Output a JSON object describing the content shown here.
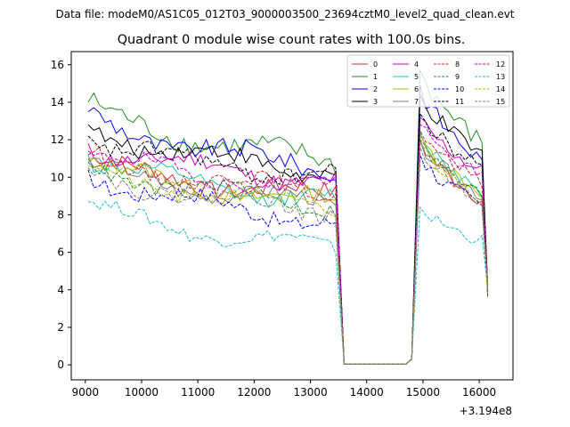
{
  "figure": {
    "suptitle": "Data file: modeM0/AS1C05_012T03_9000003500_23694cztM0_level2_quad_clean.evt"
  },
  "chart_data": {
    "type": "line",
    "title": "Quadrant 0 module wise count rates with 100.0s bins.",
    "xlabel": "",
    "ylabel": "",
    "x_offset_label": "+3.194e8",
    "xlim": [
      8750,
      16600
    ],
    "ylim": [
      -0.8,
      16.7
    ],
    "x_ticks": [
      9000,
      10000,
      11000,
      12000,
      13000,
      14000,
      15000,
      16000
    ],
    "x_tick_labels": [
      "9000",
      "10000",
      "11000",
      "12000",
      "13000",
      "14000",
      "15000",
      "16000"
    ],
    "y_ticks": [
      0,
      2,
      4,
      6,
      8,
      10,
      12,
      14,
      16
    ],
    "y_tick_labels": [
      "0",
      "2",
      "4",
      "6",
      "8",
      "10",
      "12",
      "14",
      "16"
    ],
    "legend_position": "top-right",
    "x_segments": [
      {
        "start": 9050,
        "step": 100,
        "count": 45
      },
      {
        "start": 13600,
        "step": 100,
        "count": 13
      },
      {
        "start": 14950,
        "step": 100,
        "count": 13
      }
    ],
    "series": [
      {
        "name": "0",
        "color": "#d62728",
        "dash": "solid",
        "seg1_start": 11.0,
        "seg1_end": 9.0,
        "seg2_peak": 12.0,
        "seg2_end": 8.8,
        "noise": 0.45
      },
      {
        "name": "1",
        "color": "#1f8f1f",
        "dash": "solid",
        "seg1_start": 14.0,
        "seg1_end": 10.8,
        "seg2_peak": 15.7,
        "seg2_end": 11.8,
        "noise": 0.55
      },
      {
        "name": "2",
        "color": "#0000ff",
        "dash": "solid",
        "seg1_start": 13.5,
        "seg1_end": 10.4,
        "seg2_peak": 14.9,
        "seg2_end": 10.8,
        "noise": 0.5
      },
      {
        "name": "3",
        "color": "#000000",
        "dash": "solid",
        "seg1_start": 12.8,
        "seg1_end": 10.2,
        "seg2_peak": 14.4,
        "seg2_end": 11.2,
        "noise": 0.45
      },
      {
        "name": "4",
        "color": "#cc00cc",
        "dash": "solid",
        "seg1_start": 11.8,
        "seg1_end": 9.8,
        "seg2_peak": 13.2,
        "seg2_end": 10.3,
        "noise": 0.45
      },
      {
        "name": "5",
        "color": "#17c9a3",
        "dash": "solid",
        "seg1_start": 11.2,
        "seg1_end": 8.7,
        "seg2_peak": 12.4,
        "seg2_end": 9.3,
        "noise": 0.4
      },
      {
        "name": "6",
        "color": "#b8b800",
        "dash": "solid",
        "seg1_start": 11.0,
        "seg1_end": 8.6,
        "seg2_peak": 12.2,
        "seg2_end": 9.2,
        "noise": 0.4
      },
      {
        "name": "7",
        "color": "#7f7f7f",
        "dash": "solid",
        "seg1_start": 10.8,
        "seg1_end": 8.5,
        "seg2_peak": 12.0,
        "seg2_end": 9.0,
        "noise": 0.4
      },
      {
        "name": "8",
        "color": "#d62728",
        "dash": "dashed",
        "seg1_start": 11.2,
        "seg1_end": 9.2,
        "seg2_peak": 12.5,
        "seg2_end": 9.6,
        "noise": 0.4
      },
      {
        "name": "9",
        "color": "#1f8f1f",
        "dash": "dashed",
        "seg1_start": 10.8,
        "seg1_end": 8.5,
        "seg2_peak": 12.0,
        "seg2_end": 9.0,
        "noise": 0.4
      },
      {
        "name": "10",
        "color": "#0000ff",
        "dash": "dashed",
        "seg1_start": 10.4,
        "seg1_end": 7.6,
        "seg2_peak": 11.2,
        "seg2_end": 8.4,
        "noise": 0.45
      },
      {
        "name": "11",
        "color": "#000000",
        "dash": "dashed",
        "seg1_start": 12.2,
        "seg1_end": 10.0,
        "seg2_peak": 13.4,
        "seg2_end": 10.5,
        "noise": 0.45
      },
      {
        "name": "12",
        "color": "#cc00cc",
        "dash": "dashed",
        "seg1_start": 11.4,
        "seg1_end": 9.4,
        "seg2_peak": 12.8,
        "seg2_end": 10.0,
        "noise": 0.4
      },
      {
        "name": "13",
        "color": "#17becf",
        "dash": "dashed",
        "seg1_start": 8.7,
        "seg1_end": 6.2,
        "seg2_peak": 8.4,
        "seg2_end": 6.6,
        "noise": 0.35
      },
      {
        "name": "14",
        "color": "#b8b800",
        "dash": "dashed",
        "seg1_start": 10.6,
        "seg1_end": 8.3,
        "seg2_peak": 11.8,
        "seg2_end": 8.9,
        "noise": 0.4
      },
      {
        "name": "15",
        "color": "#7f7f7f",
        "dash": "dashed",
        "seg1_start": 10.5,
        "seg1_end": 8.2,
        "seg2_peak": 11.6,
        "seg2_end": 8.8,
        "noise": 0.4
      }
    ],
    "gap_level": 0.05,
    "final_drop": 4.0
  }
}
